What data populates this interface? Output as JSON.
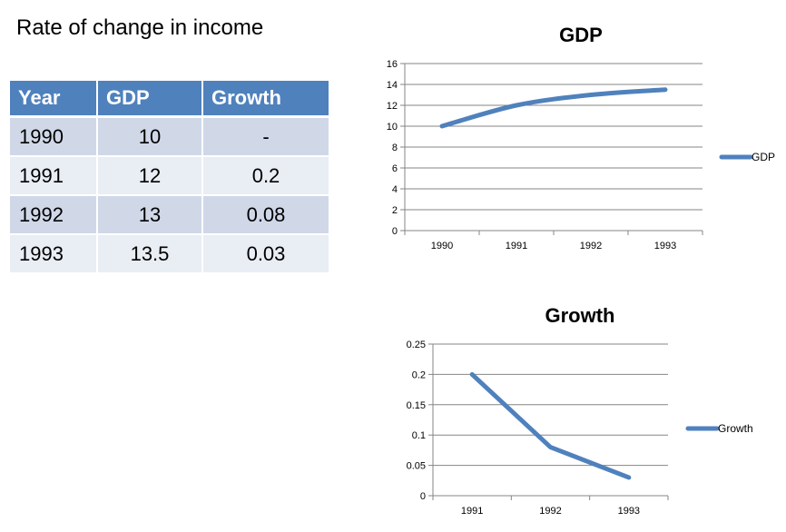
{
  "slide": {
    "title": "Rate of change in income"
  },
  "table": {
    "headers": [
      "Year",
      "GDP",
      "Growth"
    ],
    "rows": [
      [
        "1990",
        "10",
        "-"
      ],
      [
        "1991",
        "12",
        "0.2"
      ],
      [
        "1992",
        "13",
        "0.08"
      ],
      [
        "1993",
        "13.5",
        "0.03"
      ]
    ]
  },
  "colors": {
    "table_header": "#4f81bd",
    "table_row_dark": "#d0d8e8",
    "table_row_light": "#e9edf4",
    "series_line": "#4f81bd"
  },
  "chart_data": [
    {
      "type": "line",
      "title": "GDP",
      "categories": [
        "1990",
        "1991",
        "1992",
        "1993"
      ],
      "series": [
        {
          "name": "GDP",
          "values": [
            10,
            12,
            13,
            13.5
          ]
        }
      ],
      "yticks": [
        "0",
        "2",
        "4",
        "6",
        "8",
        "10",
        "12",
        "14",
        "16"
      ],
      "ylim": [
        0,
        16
      ],
      "smooth": true,
      "grid": true,
      "legend": "right"
    },
    {
      "type": "line",
      "title": "Growth",
      "categories": [
        "1991",
        "1992",
        "1993"
      ],
      "series": [
        {
          "name": "Growth",
          "values": [
            0.2,
            0.08,
            0.03
          ]
        }
      ],
      "yticks": [
        "0",
        "0.05",
        "0.1",
        "0.15",
        "0.2",
        "0.25"
      ],
      "ylim": [
        0,
        0.25
      ],
      "smooth": false,
      "grid": true,
      "legend": "right"
    }
  ]
}
